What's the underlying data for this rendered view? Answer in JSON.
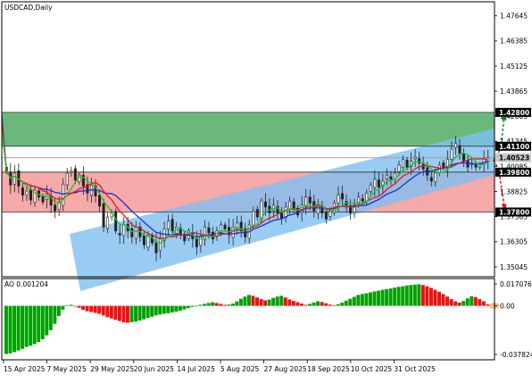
{
  "window": {
    "symbol_title": "USDCAD,Daily",
    "ao_title": "AO 0.001204"
  },
  "colors": {
    "background": "#ffffff",
    "frame": "#000000",
    "green_zone": "#6cb87c",
    "red_zone": "#f39a9a",
    "channel": "#7fbff0",
    "candle": "#222222",
    "ma_fast": "#23c123",
    "ma_mid": "#e31b1b",
    "ma_slow": "#1f2fd6",
    "ao_up": "#00a000",
    "ao_down": "#ee1111",
    "arrow_up": "#1e9a3a",
    "arrow_down": "#e31b1b"
  },
  "main": {
    "price_axis": [
      "1.47645",
      "1.46385",
      "1.45125",
      "1.43865",
      "1.42605",
      "1.41345",
      "1.40085",
      "1.38825",
      "1.37565",
      "1.36305",
      "1.35045"
    ],
    "levels": [
      {
        "price": 1.428,
        "label": "1.42800",
        "bg": "#000000"
      },
      {
        "price": 1.411,
        "label": "1.41100",
        "bg": "#000000"
      },
      {
        "price": 1.40523,
        "label": "1.40523",
        "bg": "#c8c8c8"
      },
      {
        "price": 1.398,
        "label": "1.39800",
        "bg": "#000000"
      },
      {
        "price": 1.378,
        "label": "1.37800",
        "bg": "#000000"
      }
    ],
    "zones": {
      "green": {
        "top": 1.428,
        "bottom": 1.411
      },
      "red": {
        "top": 1.398,
        "bottom": 1.378
      }
    }
  },
  "ao": {
    "axis": [
      "0.017076",
      "0.00",
      "-0.037824"
    ],
    "ylim": [
      -0.037824,
      0.017076
    ]
  },
  "time_axis": [
    "15 Apr 2025",
    "7 May 2025",
    "29 May 2025",
    "20 Jun 2025",
    "14 Jul 2025",
    "5 Aug 2025",
    "27 Aug 2025",
    "18 Sep 2025",
    "10 Oct 2025",
    "31 Oct 2025"
  ],
  "chart_data": [
    {
      "type": "candlestick",
      "title": "USDCAD,Daily",
      "ylim": [
        1.3455,
        1.4835
      ],
      "x_start": "15 Apr 2025",
      "closes": [
        1.3985,
        1.3915,
        1.3975,
        1.391,
        1.3865,
        1.3885,
        1.384,
        1.389,
        1.3855,
        1.383,
        1.387,
        1.3815,
        1.3785,
        1.3825,
        1.392,
        1.3975,
        1.3985,
        1.394,
        1.3965,
        1.391,
        1.3875,
        1.3915,
        1.386,
        1.381,
        1.3705,
        1.3755,
        1.3775,
        1.3685,
        1.3665,
        1.3715,
        1.3685,
        1.3655,
        1.3705,
        1.3655,
        1.3615,
        1.3665,
        1.3625,
        1.3575,
        1.3645,
        1.3695,
        1.3735,
        1.3685,
        1.3705,
        1.3665,
        1.3635,
        1.3685,
        1.3645,
        1.3605,
        1.3655,
        1.3705,
        1.3675,
        1.3645,
        1.3685,
        1.3715,
        1.3695,
        1.3665,
        1.3705,
        1.3725,
        1.3685,
        1.3655,
        1.3715,
        1.3785,
        1.3755,
        1.3835,
        1.3805,
        1.3775,
        1.3815,
        1.3775,
        1.3745,
        1.3805,
        1.3835,
        1.3795,
        1.3765,
        1.3815,
        1.3855,
        1.3825,
        1.3785,
        1.3815,
        1.3775,
        1.3745,
        1.3785,
        1.3825,
        1.3865,
        1.3845,
        1.3815,
        1.3775,
        1.3815,
        1.3855,
        1.3835,
        1.3875,
        1.3915,
        1.3945,
        1.3905,
        1.3935,
        1.3965,
        1.3945,
        1.3975,
        1.4015,
        1.4045,
        1.4005,
        1.4035,
        1.4055,
        1.4025,
        1.3995,
        1.3965,
        1.3935,
        1.3975,
        1.4015,
        1.4005,
        1.4045,
        1.4095,
        1.4125,
        1.4075,
        1.4035,
        1.4005,
        1.4025,
        1.4005,
        1.4015,
        1.4045,
        1.4052
      ]
    },
    {
      "type": "bar",
      "title": "AO 0.001204",
      "ylim": [
        -0.037824,
        0.017076
      ],
      "values": [
        -0.0375,
        -0.037,
        -0.036,
        -0.0348,
        -0.0335,
        -0.032,
        -0.031,
        -0.0298,
        -0.0282,
        -0.026,
        -0.023,
        -0.019,
        -0.014,
        -0.008,
        -0.003,
        0.0005,
        0.0008,
        -0.0005,
        -0.0015,
        -0.003,
        -0.0042,
        -0.0048,
        -0.0055,
        -0.0062,
        -0.0075,
        -0.0088,
        -0.0098,
        -0.0108,
        -0.0118,
        -0.0128,
        -0.0132,
        -0.0128,
        -0.0122,
        -0.0115,
        -0.0105,
        -0.0095,
        -0.0085,
        -0.0075,
        -0.0068,
        -0.0062,
        -0.0058,
        -0.0052,
        -0.0045,
        -0.0038,
        -0.0028,
        -0.0018,
        -0.0008,
        -0.0002,
        0.0008,
        0.0015,
        0.0022,
        0.0028,
        0.0022,
        0.0015,
        0.0008,
        0.001,
        0.0018,
        0.0035,
        0.0055,
        0.0072,
        0.0085,
        0.0078,
        0.0065,
        0.0052,
        0.0042,
        0.0048,
        0.0062,
        0.0072,
        0.0078,
        0.0065,
        0.005,
        0.0038,
        0.0028,
        0.0018,
        0.0008,
        0.0015,
        0.0025,
        0.0035,
        0.003,
        0.002,
        0.001,
        0.0005,
        0.0012,
        0.0025,
        0.004,
        0.0055,
        0.007,
        0.0085,
        0.0092,
        0.0098,
        0.0105,
        0.0112,
        0.0118,
        0.0125,
        0.013,
        0.0135,
        0.0142,
        0.0148,
        0.0152,
        0.0158,
        0.0162,
        0.0165,
        0.0168,
        0.0162,
        0.0152,
        0.014,
        0.0125,
        0.011,
        0.0092,
        0.0072,
        0.0052,
        0.0035,
        0.0025,
        0.0038,
        0.0058,
        0.0075,
        0.0068,
        0.0052,
        0.0035,
        0.0012
      ]
    }
  ]
}
